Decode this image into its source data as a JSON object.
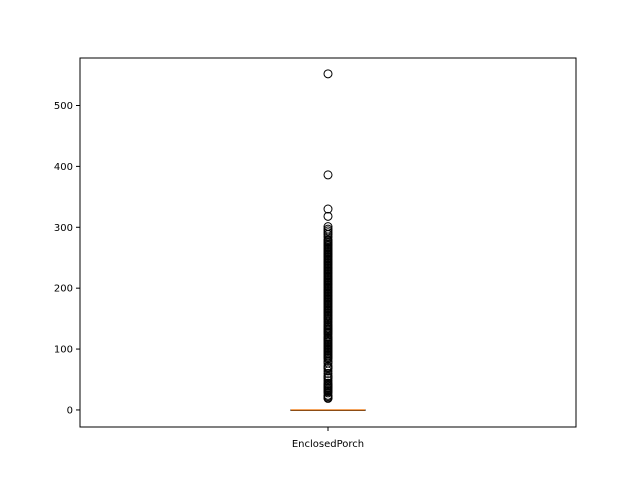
{
  "chart_data": {
    "type": "box",
    "title": "",
    "xlabel": "",
    "ylabel": "",
    "categories": [
      "EnclosedPorch"
    ],
    "ylim": [
      -28,
      578
    ],
    "yticks": [
      0,
      100,
      200,
      300,
      400,
      500
    ],
    "grid": false,
    "box": {
      "min": 0,
      "q1": 0,
      "median": 0,
      "q3": 0,
      "max": 0
    },
    "outliers": [
      19,
      20,
      22,
      24,
      28,
      30,
      32,
      34,
      36,
      37,
      39,
      40,
      42,
      44,
      48,
      52,
      54,
      56,
      60,
      64,
      68,
      70,
      72,
      77,
      80,
      84,
      86,
      88,
      90,
      92,
      94,
      96,
      98,
      100,
      102,
      104,
      106,
      108,
      110,
      112,
      114,
      116,
      118,
      120,
      123,
      126,
      128,
      130,
      132,
      134,
      136,
      138,
      140,
      143,
      145,
      148,
      150,
      152,
      154,
      156,
      158,
      160,
      162,
      164,
      166,
      168,
      170,
      172,
      174,
      176,
      178,
      180,
      182,
      184,
      186,
      188,
      190,
      192,
      194,
      196,
      198,
      200,
      202,
      204,
      206,
      208,
      210,
      212,
      214,
      216,
      218,
      220,
      222,
      224,
      226,
      228,
      230,
      232,
      234,
      236,
      238,
      240,
      242,
      244,
      246,
      248,
      250,
      252,
      254,
      256,
      258,
      260,
      262,
      264,
      266,
      268,
      270,
      272,
      274,
      276,
      278,
      280,
      284,
      288,
      291,
      294,
      297,
      301,
      318,
      330,
      386,
      552
    ],
    "colors": {
      "box": "#000000",
      "median": "#ff7f0e",
      "flier": "#000000"
    }
  }
}
